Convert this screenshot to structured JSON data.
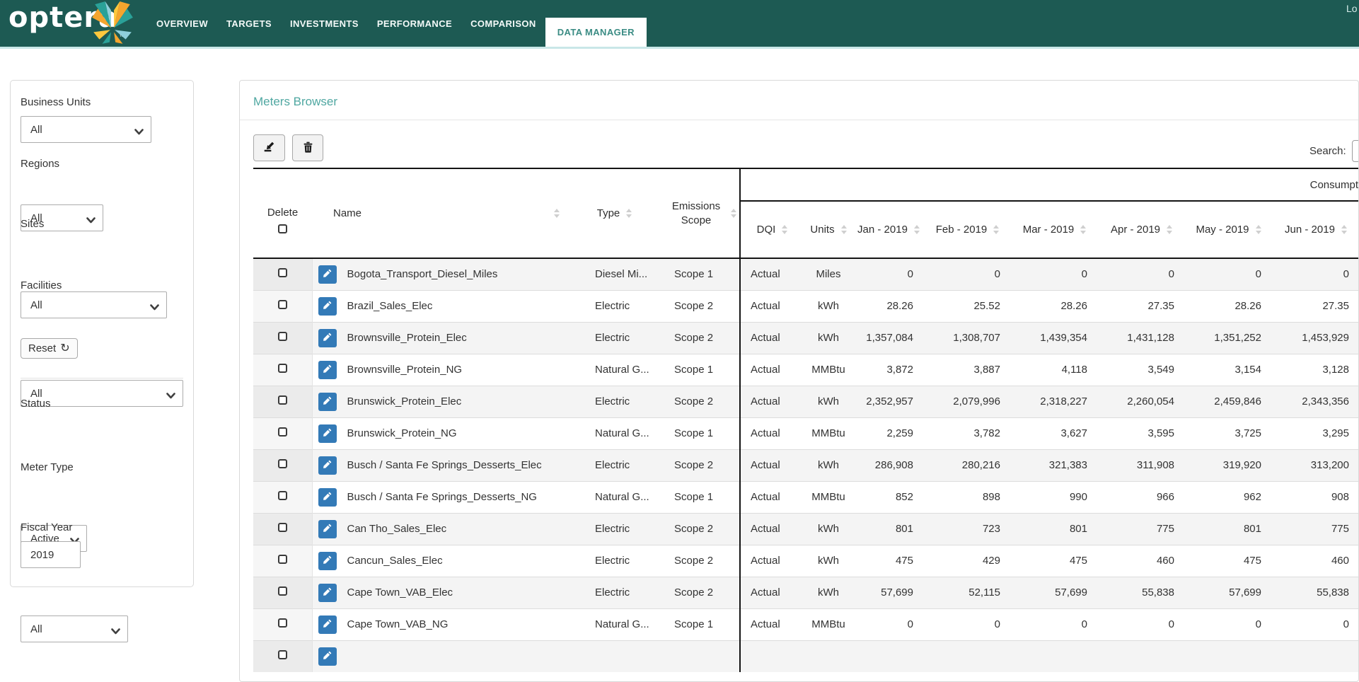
{
  "nav": {
    "logo_text": "optera",
    "logo_tm": "™",
    "items": [
      "OVERVIEW",
      "TARGETS",
      "INVESTMENTS",
      "PERFORMANCE",
      "COMPARISON",
      "DATA MANAGER"
    ],
    "active_item": "DATA MANAGER",
    "logout_text": "Lo"
  },
  "colors": {
    "nav_background": "#1d5a53",
    "nav_underline": "#c9e7e8",
    "accent_teal": "#4fa7a1",
    "edit_button_blue": "#337ab7"
  },
  "sidebar": {
    "business_units": {
      "label": "Business Units",
      "value": "All"
    },
    "regions": {
      "label": "Regions",
      "value": "All"
    },
    "sites": {
      "label": "Sites",
      "value": "All"
    },
    "facilities": {
      "label": "Facilities",
      "value": "All"
    },
    "reset_label": "Reset",
    "status": {
      "label": "Status",
      "value": "Active"
    },
    "meter_type": {
      "label": "Meter Type",
      "value": "All"
    },
    "fiscal_year": {
      "label": "Fiscal Year",
      "value": "2019"
    }
  },
  "main": {
    "title": "Meters Browser",
    "search_label": "Search:",
    "table": {
      "group_header": "Consumpt",
      "left_columns": [
        "Delete",
        "Name",
        "Type",
        "Emissions Scope"
      ],
      "right_columns": [
        "DQI",
        "Units",
        "Jan - 2019",
        "Feb - 2019",
        "Mar - 2019",
        "Apr - 2019",
        "May - 2019",
        "Jun - 2019"
      ],
      "rows": [
        {
          "name": "Bogota_Transport_Diesel_Miles",
          "type": "Diesel Mi...",
          "scope": "Scope 1",
          "dqi": "Actual",
          "units": "Miles",
          "values": [
            "0",
            "0",
            "0",
            "0",
            "0",
            "0"
          ]
        },
        {
          "name": "Brazil_Sales_Elec",
          "type": "Electric",
          "scope": "Scope 2",
          "dqi": "Actual",
          "units": "kWh",
          "values": [
            "28.26",
            "25.52",
            "28.26",
            "27.35",
            "28.26",
            "27.35"
          ]
        },
        {
          "name": "Brownsville_Protein_Elec",
          "type": "Electric",
          "scope": "Scope 2",
          "dqi": "Actual",
          "units": "kWh",
          "values": [
            "1,357,084",
            "1,308,707",
            "1,439,354",
            "1,431,128",
            "1,351,252",
            "1,453,929"
          ]
        },
        {
          "name": "Brownsville_Protein_NG",
          "type": "Natural G...",
          "scope": "Scope 1",
          "dqi": "Actual",
          "units": "MMBtu",
          "values": [
            "3,872",
            "3,887",
            "4,118",
            "3,549",
            "3,154",
            "3,128"
          ]
        },
        {
          "name": "Brunswick_Protein_Elec",
          "type": "Electric",
          "scope": "Scope 2",
          "dqi": "Actual",
          "units": "kWh",
          "values": [
            "2,352,957",
            "2,079,996",
            "2,318,227",
            "2,260,054",
            "2,459,846",
            "2,343,356"
          ]
        },
        {
          "name": "Brunswick_Protein_NG",
          "type": "Natural G...",
          "scope": "Scope 1",
          "dqi": "Actual",
          "units": "MMBtu",
          "values": [
            "2,259",
            "3,782",
            "3,627",
            "3,595",
            "3,725",
            "3,295"
          ]
        },
        {
          "name": "Busch / Santa Fe Springs_Desserts_Elec",
          "type": "Electric",
          "scope": "Scope 2",
          "dqi": "Actual",
          "units": "kWh",
          "values": [
            "286,908",
            "280,216",
            "321,383",
            "311,908",
            "319,920",
            "313,200"
          ]
        },
        {
          "name": "Busch / Santa Fe Springs_Desserts_NG",
          "type": "Natural G...",
          "scope": "Scope 1",
          "dqi": "Actual",
          "units": "MMBtu",
          "values": [
            "852",
            "898",
            "990",
            "966",
            "962",
            "908"
          ]
        },
        {
          "name": "Can Tho_Sales_Elec",
          "type": "Electric",
          "scope": "Scope 2",
          "dqi": "Actual",
          "units": "kWh",
          "values": [
            "801",
            "723",
            "801",
            "775",
            "801",
            "775"
          ]
        },
        {
          "name": "Cancun_Sales_Elec",
          "type": "Electric",
          "scope": "Scope 2",
          "dqi": "Actual",
          "units": "kWh",
          "values": [
            "475",
            "429",
            "475",
            "460",
            "475",
            "460"
          ]
        },
        {
          "name": "Cape Town_VAB_Elec",
          "type": "Electric",
          "scope": "Scope 2",
          "dqi": "Actual",
          "units": "kWh",
          "values": [
            "57,699",
            "52,115",
            "57,699",
            "55,838",
            "57,699",
            "55,838"
          ]
        },
        {
          "name": "Cape Town_VAB_NG",
          "type": "Natural G...",
          "scope": "Scope 1",
          "dqi": "Actual",
          "units": "MMBtu",
          "values": [
            "0",
            "0",
            "0",
            "0",
            "0",
            "0"
          ]
        },
        {
          "name": "",
          "type": "",
          "scope": "",
          "dqi": "",
          "units": "",
          "values": [
            "",
            "",
            "",
            "",
            "",
            ""
          ],
          "partial": true
        }
      ]
    }
  }
}
